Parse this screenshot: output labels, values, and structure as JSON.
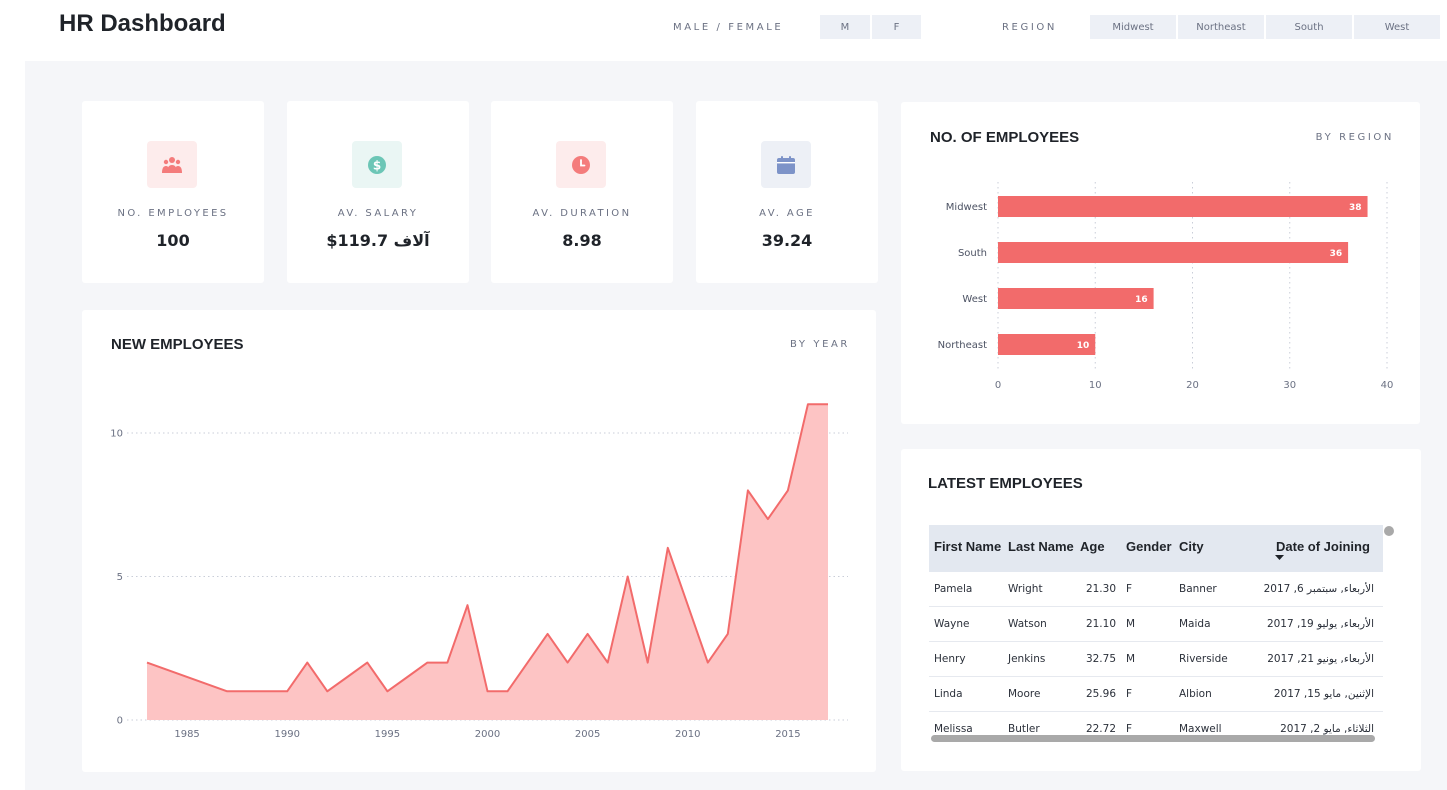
{
  "app": {
    "title": "HR Dashboard"
  },
  "filters": {
    "gender_label": "MALE / FEMALE",
    "gender_options": [
      "M",
      "F"
    ],
    "region_label": "REGION",
    "region_options": [
      "Midwest",
      "Northeast",
      "South",
      "West"
    ]
  },
  "kpis": [
    {
      "label": "NO. EMPLOYEES",
      "value": "100",
      "icon": "people-icon",
      "icon_bg": "#fdecec",
      "icon_color": "#f47c7c"
    },
    {
      "label": "AV. SALARY",
      "value": "$119.7 آلاف",
      "icon": "dollar-icon",
      "icon_bg": "#eaf6f4",
      "icon_color": "#6cc6b6"
    },
    {
      "label": "AV. DURATION",
      "value": "8.98",
      "icon": "clock-icon",
      "icon_bg": "#fdecec",
      "icon_color": "#f47c7c"
    },
    {
      "label": "AV. AGE",
      "value": "39.24",
      "icon": "calendar-icon",
      "icon_bg": "#edf0f6",
      "icon_color": "#7d93c8"
    }
  ],
  "new_employees": {
    "title": "NEW EMPLOYEES",
    "subtitle": "BY YEAR",
    "colors": {
      "line": "#f26b6b",
      "fill": "#fdc4c4"
    }
  },
  "employees_by_region": {
    "title": "NO. OF EMPLOYEES",
    "subtitle": "BY REGION",
    "colors": {
      "bar": "#f26b6b"
    }
  },
  "latest_employees": {
    "title": "LATEST EMPLOYEES",
    "columns": [
      "First Name",
      "Last Name",
      "Age",
      "Gender",
      "City",
      "Date of Joining"
    ],
    "rows": [
      [
        "Pamela",
        "Wright",
        "21.30",
        "F",
        "Banner",
        "الأربعاء, سبتمبر 6, 2017"
      ],
      [
        "Wayne",
        "Watson",
        "21.10",
        "M",
        "Maida",
        "الأربعاء, يوليو 19, 2017"
      ],
      [
        "Henry",
        "Jenkins",
        "32.75",
        "M",
        "Riverside",
        "الأربعاء, يونيو 21, 2017"
      ],
      [
        "Linda",
        "Moore",
        "25.96",
        "F",
        "Albion",
        "الإثنين, مايو 15, 2017"
      ],
      [
        "Melissa",
        "Butler",
        "22.72",
        "F",
        "Maxwell",
        "الثلاثاء, مايو 2, 2017"
      ]
    ]
  },
  "chart_data": [
    {
      "type": "area",
      "title": "NEW EMPLOYEES",
      "subtitle": "BY YEAR",
      "xlabel": "",
      "ylabel": "",
      "x": [
        1983,
        1987,
        1988,
        1989,
        1990,
        1991,
        1992,
        1993,
        1994,
        1995,
        1996,
        1997,
        1998,
        1999,
        2000,
        2001,
        2002,
        2003,
        2004,
        2005,
        2006,
        2007,
        2008,
        2009,
        2010,
        2011,
        2012,
        2013,
        2014,
        2015,
        2016,
        2017
      ],
      "values": [
        2,
        1,
        1,
        1,
        1,
        2,
        1,
        1.5,
        2,
        1,
        1.5,
        2,
        2,
        4,
        1,
        1,
        2,
        3,
        2,
        3,
        2,
        5,
        2,
        6,
        4,
        2,
        3,
        8,
        7,
        8,
        11,
        11
      ],
      "xlim": [
        1982,
        2018
      ],
      "ylim": [
        0,
        11.5
      ],
      "xticks": [
        1985,
        1990,
        1995,
        2000,
        2005,
        2010,
        2015
      ],
      "yticks": [
        0,
        5,
        10
      ],
      "grid": true
    },
    {
      "type": "bar",
      "orientation": "horizontal",
      "title": "NO. OF EMPLOYEES",
      "subtitle": "BY REGION",
      "categories": [
        "Midwest",
        "South",
        "West",
        "Northeast"
      ],
      "values": [
        38,
        36,
        16,
        10
      ],
      "xlim": [
        0,
        40
      ],
      "xticks": [
        0,
        10,
        20,
        30,
        40
      ],
      "data_labels": true,
      "grid": true
    }
  ]
}
